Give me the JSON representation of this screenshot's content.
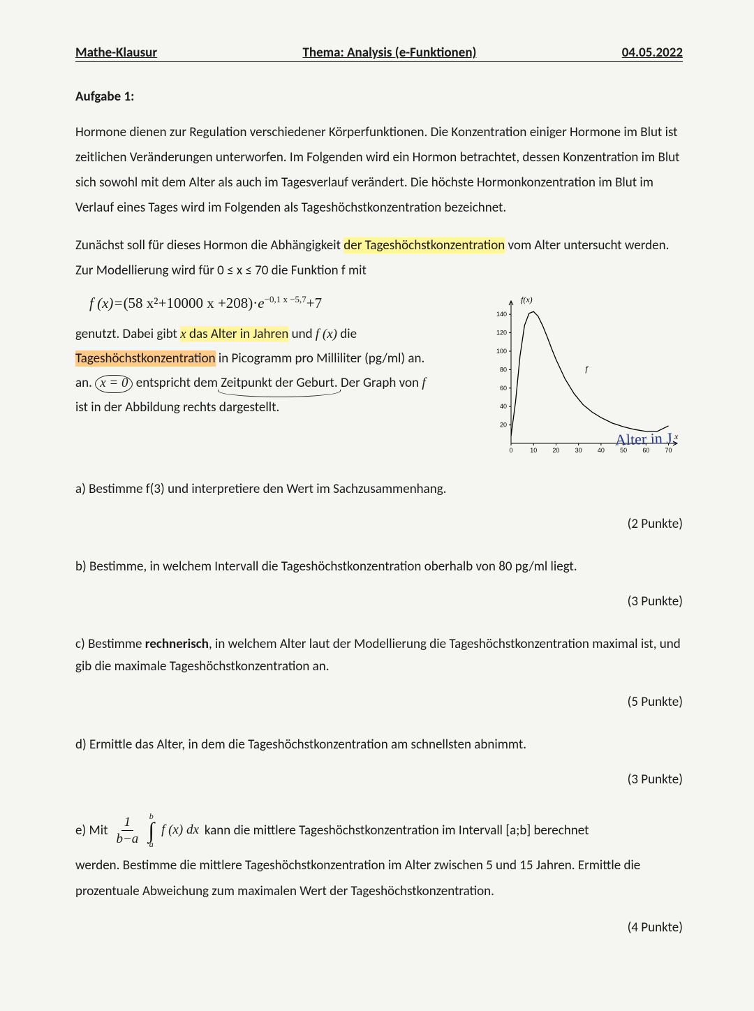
{
  "header": {
    "left": "Mathe-Klausur",
    "center": "Thema: Analysis (e-Funktionen)",
    "right": "04.05.2022"
  },
  "task_title": "Aufgabe 1:",
  "para1": "Hormone dienen zur Regulation verschiedener Körperfunktionen. Die Konzentration einiger Hormone im Blut ist zeitlichen Veränderungen unterworfen. Im Folgenden wird ein Hormon betrachtet, dessen Konzentration im Blut sich sowohl mit dem Alter als auch im Tagesverlauf verändert. Die höchste Hormonkonzentration im Blut im Verlauf eines Tages wird im Folgenden als Tageshöchstkonzentration bezeichnet.",
  "para2_pre": "Zunächst soll für dieses Hormon die Abhängigkeit ",
  "para2_hl": "der Tageshöchstkonzentration",
  "para2_post": " vom Alter untersucht werden. Zur Modellierung wird für 0 ≤ x ≤ 70 die Funktion f mit",
  "formula": {
    "lhs": "f (x)=",
    "poly": "(58 x²+10000 x +208)·",
    "e": "e",
    "exp": "−0,1 x −5,7",
    "tail": "+7"
  },
  "desc": {
    "t1": "genutzt. Dabei gibt ",
    "hl_x": "x das Alter in Jahren",
    "t2": " und ",
    "fx": "f (x)",
    "t3": " die ",
    "hl_thk": "Tageshöchstkonzentration",
    "t4": " in Picogramm pro Milliliter (pg/ml) an. ",
    "x0": "x = 0",
    "t5": " entspricht dem ",
    "zp": "Zeitpunkt der Geburt.",
    "t6": " Der Graph von ",
    "f": "f",
    "t7": " ist in der Abbildung rechts dargestellt."
  },
  "chart": {
    "fx_label": "f(x)",
    "x_label": "x",
    "f_label": "f",
    "y_ticks": [
      "20",
      "40",
      "60",
      "80",
      "100",
      "120",
      "140"
    ],
    "x_ticks": [
      "0",
      "10",
      "20",
      "30",
      "40",
      "50",
      "60",
      "70"
    ],
    "ymax": 150,
    "xmax": 72,
    "curve_points": [
      [
        0,
        8
      ],
      [
        2,
        45
      ],
      [
        4,
        95
      ],
      [
        6,
        128
      ],
      [
        8,
        141
      ],
      [
        10,
        143
      ],
      [
        12,
        138
      ],
      [
        14,
        128
      ],
      [
        16,
        116
      ],
      [
        18,
        103
      ],
      [
        20,
        91
      ],
      [
        24,
        70
      ],
      [
        28,
        54
      ],
      [
        32,
        42
      ],
      [
        36,
        34
      ],
      [
        40,
        28
      ],
      [
        45,
        22
      ],
      [
        50,
        18
      ],
      [
        55,
        15
      ],
      [
        60,
        13
      ],
      [
        65,
        13
      ],
      [
        70,
        19
      ]
    ],
    "axis_color": "#000000",
    "curve_color": "#000000",
    "tick_font": 9,
    "label_font": 12
  },
  "sub_a": "a) Bestimme f(3) und interpretiere den Wert im Sachzusammenhang.",
  "handwriting": "Alter in J.",
  "points_a": "(2 Punkte)",
  "sub_b": "b) Bestimme, in welchem Intervall die Tageshöchstkonzentration oberhalb von 80 pg/ml liegt.",
  "points_b": "(3 Punkte)",
  "sub_c_pre": "c) Bestimme ",
  "sub_c_bold": "rechnerisch",
  "sub_c_post": ", in welchem Alter laut der Modellierung die Tageshöchstkonzentration maximal ist, und gib die maximale Tageshöchstkonzentration an.",
  "points_c": "(5 Punkte)",
  "sub_d": "d) Ermittle das Alter, in dem die Tageshöchstkonzentration am schnellsten abnimmt.",
  "points_d": "(3 Punkte)",
  "sub_e": {
    "lead": "e) Mit",
    "frac_num": "1",
    "frac_den": "b−a",
    "int_b": "b",
    "int_a": "a",
    "fx": "f (x) dx",
    "tail": "kann die mittlere Tageshöchstkonzentration im Intervall [a;b] berechnet",
    "line2": "werden. Bestimme die mittlere Tageshöchstkonzentration im Alter zwischen 5 und 15 Jahren. Ermittle die prozentuale Abweichung zum maximalen Wert der Tageshöchstkonzentration."
  },
  "points_e": "(4 Punkte)"
}
